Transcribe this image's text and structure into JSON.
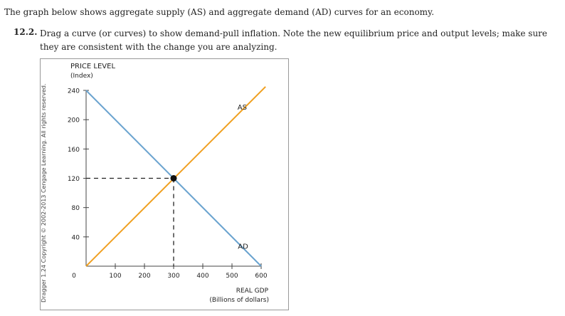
{
  "intro": "The graph below shows aggregate supply (AS) and aggregate demand (AD) curves for an economy.",
  "question": {
    "number": "12.2.",
    "text": "Drag a curve (or curves) to show demand-pull inflation. Note the new equilibrium price and output levels; make sure they are consistent with the change you are analyzing."
  },
  "copyright": "Dragger 1.24 Copyright © 2002-2013 Cengage Learning. All rights reserved.",
  "chart_data": {
    "type": "line",
    "ylabel_line1": "PRICE LEVEL",
    "ylabel_line2": "(Index)",
    "xlabel_line1": "REAL GDP",
    "xlabel_line2": "(Billions of dollars)",
    "xlim": [
      0,
      600
    ],
    "ylim": [
      0,
      240
    ],
    "x_ticks": [
      0,
      100,
      200,
      300,
      400,
      500,
      600
    ],
    "y_ticks": [
      40,
      80,
      120,
      160,
      200,
      240
    ],
    "zero_label": "0",
    "series": [
      {
        "name": "AS",
        "color": "#f0a020",
        "points": [
          [
            0,
            0
          ],
          [
            615,
            245
          ]
        ]
      },
      {
        "name": "AD",
        "color": "#6aa3cf",
        "points": [
          [
            0,
            240
          ],
          [
            600,
            0
          ]
        ]
      }
    ],
    "equilibrium": {
      "x": 300,
      "y": 120,
      "color": "#111111"
    },
    "guide_color": "#222222"
  }
}
